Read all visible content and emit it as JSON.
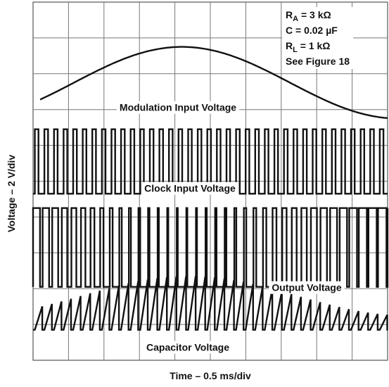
{
  "chart_data": {
    "type": "line",
    "title": "",
    "xlabel": "Time – 0.5 ms/div",
    "ylabel": "Voltage – 2 V/div",
    "grid": true,
    "grid_divisions": {
      "x": 10,
      "y": 10
    },
    "annotations": [
      {
        "symbol": "R",
        "sub": "A",
        "rest": " = 3 kΩ"
      },
      {
        "symbol": "C",
        "sub": "",
        "rest": " = 0.02 µF"
      },
      {
        "symbol": "R",
        "sub": "L",
        "rest": " = 1 kΩ"
      },
      {
        "symbol": "See Figure 18",
        "sub": "",
        "rest": ""
      }
    ],
    "series": [
      {
        "name": "Modulation Input Voltage",
        "color": "#111111",
        "kind": "sine",
        "cycles_per_screen": 0.82,
        "peak_time_div": 4.2
      },
      {
        "name": "Clock Input Voltage",
        "color": "#111111",
        "kind": "pulse",
        "pulses_per_div": 3.7,
        "amplitude_div": 1.8
      },
      {
        "name": "Output Voltage",
        "color": "#111111",
        "kind": "pwm",
        "pulses_per_div": 3.7,
        "amplitude_div": 2.2
      },
      {
        "name": "Capacitor Voltage",
        "color": "#111111",
        "kind": "sawtooth",
        "pulses_per_div": 3.7,
        "min_peak_div": 0.4,
        "max_peak_div": 1.5
      }
    ]
  }
}
